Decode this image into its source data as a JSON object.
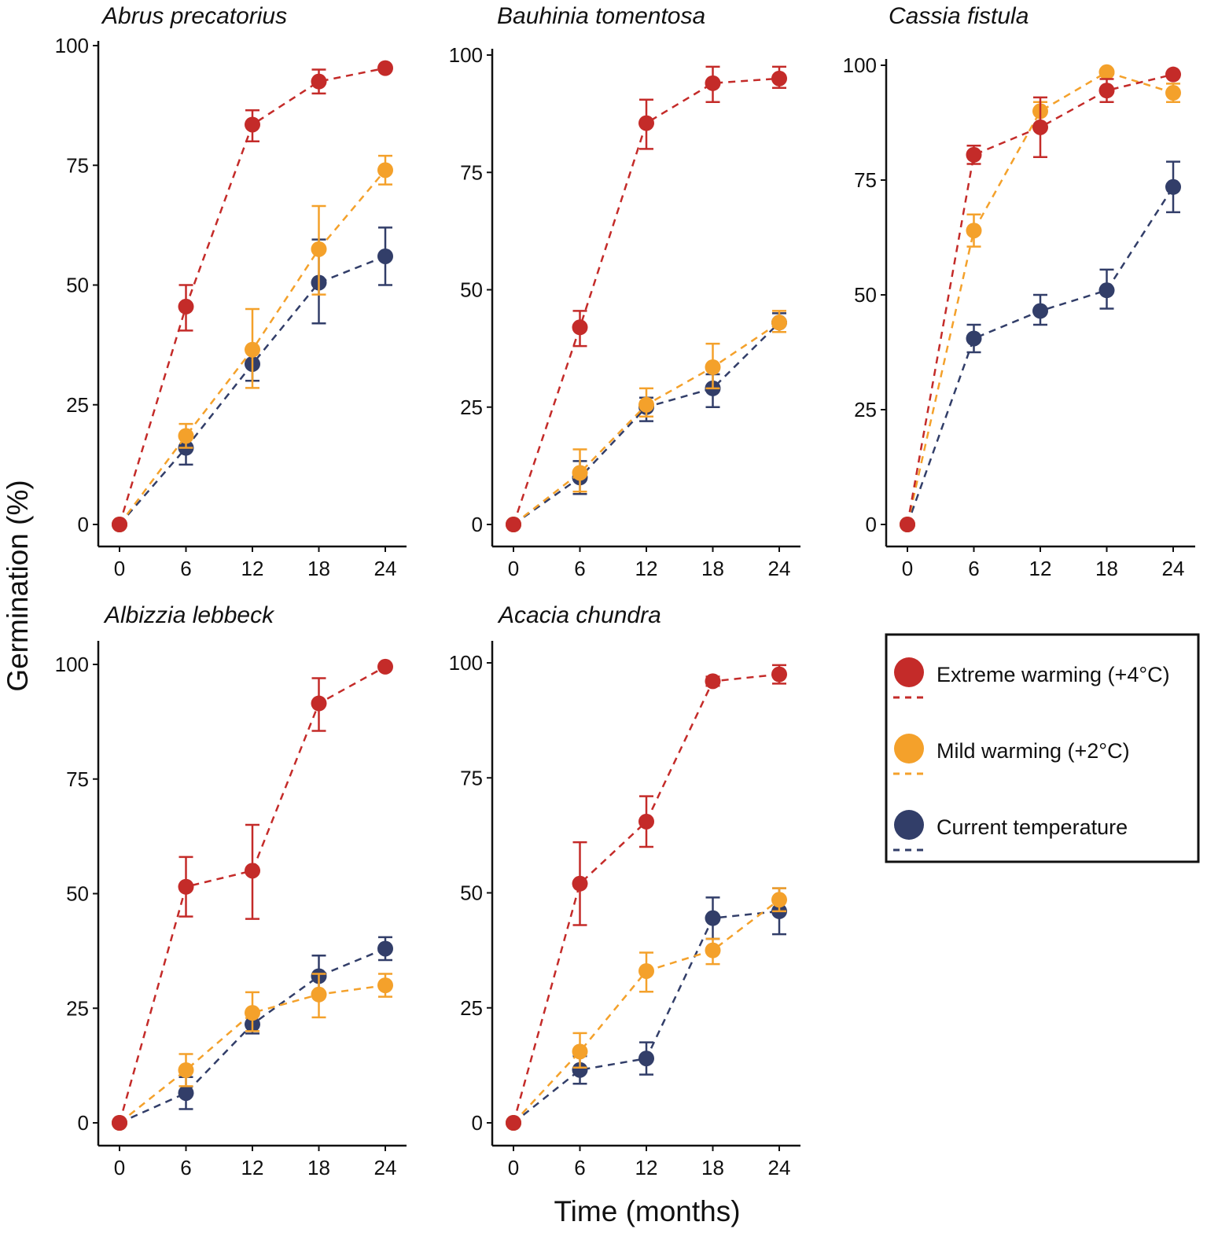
{
  "ylabel": "Germination (%)",
  "xlabel": "Time (months)",
  "colors": {
    "extreme": "#c42b29",
    "mild": "#f4a12b",
    "current": "#323e69"
  },
  "legend": [
    {
      "key": "extreme",
      "label": "Extreme warming (+4°C)"
    },
    {
      "key": "mild",
      "label": "Mild warming (+2°C)"
    },
    {
      "key": "current",
      "label": "Current temperature"
    }
  ],
  "chart_data": [
    {
      "type": "line",
      "title": "Abrus precatorius",
      "x": [
        0,
        6,
        12,
        18,
        24
      ],
      "xticks": [
        "0",
        "6",
        "12",
        "18",
        "24"
      ],
      "ylim": [
        0,
        100
      ],
      "yticks": [
        "0",
        "25",
        "50",
        "75",
        "100"
      ],
      "grid": false,
      "series": [
        {
          "key": "extreme",
          "name": "Extreme warming (+4°C)",
          "values": [
            0,
            45.5,
            83.5,
            92.5,
            95.3
          ],
          "err_low": [
            null,
            40.5,
            80,
            90,
            null
          ],
          "err_high": [
            null,
            50,
            86.5,
            95,
            null
          ]
        },
        {
          "key": "mild",
          "name": "Mild warming (+2°C)",
          "values": [
            0,
            18.5,
            36.5,
            57.5,
            74
          ],
          "err_low": [
            null,
            16,
            28.5,
            48,
            71
          ],
          "err_high": [
            null,
            21,
            45,
            66.5,
            77
          ]
        },
        {
          "key": "current",
          "name": "Current temperature",
          "values": [
            0,
            16,
            33.5,
            50.5,
            56
          ],
          "err_low": [
            null,
            12.5,
            30,
            42,
            50
          ],
          "err_high": [
            null,
            19,
            36,
            59.5,
            62
          ]
        }
      ]
    },
    {
      "type": "line",
      "title": "Bauhinia tomentosa",
      "x": [
        0,
        6,
        12,
        18,
        24
      ],
      "xticks": [
        "0",
        "6",
        "12",
        "18",
        "24"
      ],
      "ylim": [
        0,
        100
      ],
      "yticks": [
        "0",
        "25",
        "50",
        "75",
        "100"
      ],
      "grid": false,
      "series": [
        {
          "key": "extreme",
          "name": "Extreme warming (+4°C)",
          "values": [
            0,
            42,
            85.5,
            94,
            95
          ],
          "err_low": [
            null,
            38,
            80,
            90,
            93
          ],
          "err_high": [
            null,
            45.5,
            90.5,
            97.5,
            97.5
          ]
        },
        {
          "key": "mild",
          "name": "Mild warming (+2°C)",
          "values": [
            0,
            11,
            25.5,
            33.5,
            43
          ],
          "err_low": [
            null,
            7,
            23,
            29,
            41
          ],
          "err_high": [
            null,
            16,
            29,
            38.5,
            45.5
          ]
        },
        {
          "key": "current",
          "name": "Current temperature",
          "values": [
            0,
            10,
            25,
            29,
            43
          ],
          "err_low": [
            null,
            6.5,
            22,
            25,
            41
          ],
          "err_high": [
            null,
            13.5,
            27,
            32,
            45
          ]
        }
      ]
    },
    {
      "type": "line",
      "title": "Cassia fistula",
      "x": [
        0,
        6,
        12,
        18,
        24
      ],
      "xticks": [
        "0",
        "6",
        "12",
        "18",
        "24"
      ],
      "ylim": [
        0,
        100
      ],
      "yticks": [
        "0",
        "25",
        "50",
        "75",
        "100"
      ],
      "grid": false,
      "series": [
        {
          "key": "extreme",
          "name": "Extreme warming (+4°C)",
          "values": [
            0,
            80.5,
            86.5,
            94.5,
            98
          ],
          "err_low": [
            null,
            78.5,
            80,
            92,
            null
          ],
          "err_high": [
            null,
            82.5,
            93,
            97,
            null
          ]
        },
        {
          "key": "mild",
          "name": "Mild warming (+2°C)",
          "values": [
            0,
            64,
            90,
            98.5,
            94
          ],
          "err_low": [
            null,
            60.5,
            87,
            null,
            92
          ],
          "err_high": [
            null,
            67.5,
            92,
            null,
            96
          ]
        },
        {
          "key": "current",
          "name": "Current temperature",
          "values": [
            0,
            40.5,
            46.5,
            51,
            73.5
          ],
          "err_low": [
            null,
            37.5,
            43.5,
            47,
            68
          ],
          "err_high": [
            null,
            43.5,
            50,
            55.5,
            79
          ]
        }
      ]
    },
    {
      "type": "line",
      "title": "Albizzia lebbeck",
      "x": [
        0,
        6,
        12,
        18,
        24
      ],
      "xticks": [
        "0",
        "6",
        "12",
        "18",
        "24"
      ],
      "ylim": [
        0,
        100
      ],
      "yticks": [
        "0",
        "25",
        "50",
        "75",
        "100"
      ],
      "grid": false,
      "series": [
        {
          "key": "extreme",
          "name": "Extreme warming (+4°C)",
          "values": [
            0,
            51.5,
            55,
            91.5,
            99.5
          ],
          "err_low": [
            null,
            45,
            44.5,
            85.5,
            null
          ],
          "err_high": [
            null,
            58,
            65,
            97,
            null
          ]
        },
        {
          "key": "mild",
          "name": "Mild warming (+2°C)",
          "values": [
            0,
            11.5,
            24,
            28,
            30
          ],
          "err_low": [
            null,
            8,
            20,
            23,
            27.5
          ],
          "err_high": [
            null,
            15,
            28.5,
            32.5,
            32.5
          ]
        },
        {
          "key": "current",
          "name": "Current temperature",
          "values": [
            0,
            6.5,
            21.5,
            32,
            38
          ],
          "err_low": [
            null,
            3,
            19.5,
            28,
            35.5
          ],
          "err_high": [
            null,
            10,
            23.5,
            36.5,
            40.5
          ]
        }
      ]
    },
    {
      "type": "line",
      "title": "Acacia chundra",
      "x": [
        0,
        6,
        12,
        18,
        24
      ],
      "xticks": [
        "0",
        "6",
        "12",
        "18",
        "24"
      ],
      "ylim": [
        0,
        100
      ],
      "yticks": [
        "0",
        "25",
        "50",
        "75",
        "100"
      ],
      "grid": false,
      "series": [
        {
          "key": "extreme",
          "name": "Extreme warming (+4°C)",
          "values": [
            0,
            52,
            65.5,
            96,
            97.5
          ],
          "err_low": [
            null,
            43,
            60,
            95,
            95.5
          ],
          "err_high": [
            null,
            61,
            71,
            97,
            99.5
          ]
        },
        {
          "key": "mild",
          "name": "Mild warming (+2°C)",
          "values": [
            0,
            15.5,
            33,
            37.5,
            48.5
          ],
          "err_low": [
            null,
            12,
            28.5,
            34.5,
            46
          ],
          "err_high": [
            null,
            19.5,
            37,
            40,
            51
          ]
        },
        {
          "key": "current",
          "name": "Current temperature",
          "values": [
            0,
            11.5,
            14,
            44.5,
            46
          ],
          "err_low": [
            null,
            8.5,
            10.5,
            40,
            41
          ],
          "err_high": [
            null,
            14.5,
            17.5,
            49,
            51
          ]
        }
      ]
    }
  ]
}
